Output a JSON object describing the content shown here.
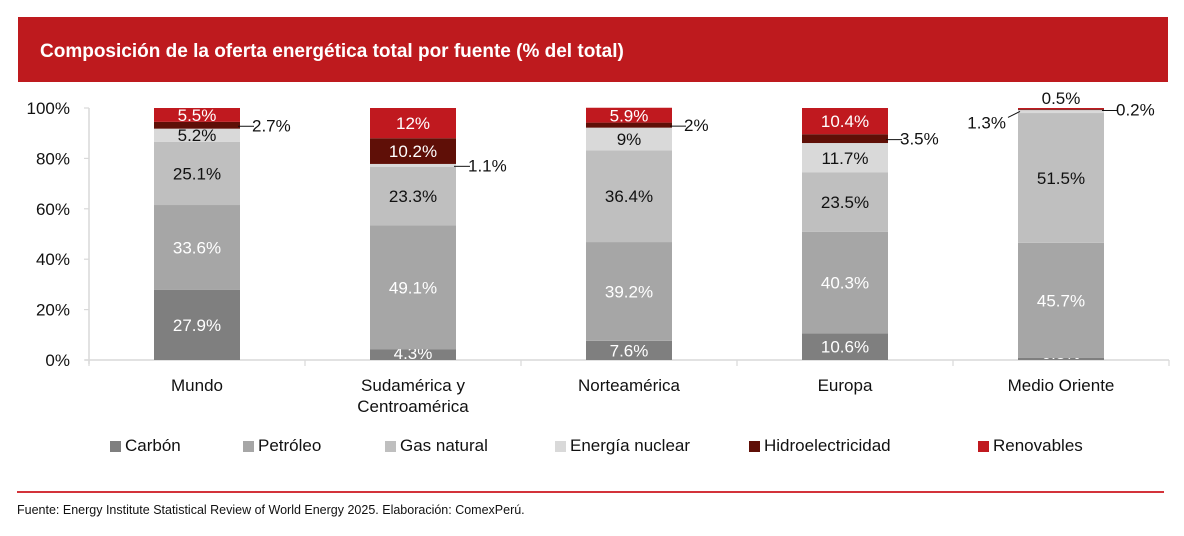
{
  "header": {
    "title": "Composición de la oferta energética total por fuente (% del total)",
    "banner_color": "#be1a1e"
  },
  "chart_data": {
    "type": "bar",
    "stacked": true,
    "title": "Composición de la oferta energética total por fuente (% del total)",
    "xlabel": "",
    "ylabel": "",
    "ylim": [
      0,
      100
    ],
    "yticks": [
      0,
      20,
      40,
      60,
      80,
      100
    ],
    "ytick_labels": [
      "0%",
      "20%",
      "40%",
      "60%",
      "80%",
      "100%"
    ],
    "grid": false,
    "legend_position": "bottom",
    "categories": [
      [
        "Mundo"
      ],
      [
        "Sudamérica y",
        "Centroamérica"
      ],
      [
        "Norteamérica"
      ],
      [
        "Europa"
      ],
      [
        "Medio Oriente"
      ]
    ],
    "series": [
      {
        "name": "Carbón",
        "color": "#7f7f7f",
        "label_color": "#ffffff",
        "values": [
          27.9,
          4.3,
          7.6,
          10.6,
          0.8
        ],
        "labels": [
          "27.9%",
          "4.3%",
          "7.6%",
          "10.6%",
          "0.8%"
        ]
      },
      {
        "name": "Petróleo",
        "color": "#a6a6a6",
        "label_color": "#ffffff",
        "values": [
          33.6,
          49.1,
          39.2,
          40.3,
          45.7
        ],
        "labels": [
          "33.6%",
          "49.1%",
          "39.2%",
          "40.3%",
          "45.7%"
        ]
      },
      {
        "name": "Gas natural",
        "color": "#bfbfbf",
        "label_color": "#111111",
        "values": [
          25.1,
          23.3,
          36.4,
          23.5,
          51.5
        ],
        "labels": [
          "25.1%",
          "23.3%",
          "36.4%",
          "23.5%",
          "51.5%"
        ]
      },
      {
        "name": "Energía nuclear",
        "color": "#d9d9d9",
        "label_color": "#111111",
        "values": [
          5.2,
          1.1,
          9.0,
          11.7,
          1.3
        ],
        "labels": [
          "5.2%",
          "1.1%",
          "9%",
          "11.7%",
          "1.3%"
        ]
      },
      {
        "name": "Hidroelectricidad",
        "color": "#5f0f07",
        "label_color": "#ffffff",
        "values": [
          2.7,
          10.2,
          2.0,
          3.5,
          0.2
        ],
        "labels": [
          "2.7%",
          "10.2%",
          "2%",
          "3.5%",
          "0.2%"
        ]
      },
      {
        "name": "Renovables",
        "color": "#c0191f",
        "label_color": "#ffffff",
        "values": [
          5.5,
          12.0,
          5.9,
          10.4,
          0.5
        ],
        "labels": [
          "5.5%",
          "12%",
          "5.9%",
          "10.4%",
          "0.5%"
        ]
      }
    ],
    "callout_labels": [
      {
        "category": 0,
        "series": 4,
        "side": "right"
      },
      {
        "category": 1,
        "series": 3,
        "side": "right"
      },
      {
        "category": 2,
        "series": 4,
        "side": "right"
      },
      {
        "category": 3,
        "series": 4,
        "side": "right"
      },
      {
        "category": 4,
        "series": 3,
        "side": "left"
      },
      {
        "category": 4,
        "series": 4,
        "side": "right"
      },
      {
        "category": 4,
        "series": 5,
        "side": "top"
      }
    ]
  },
  "legend": {
    "items": [
      "Carbón",
      "Petróleo",
      "Gas natural",
      "Energía nuclear",
      "Hidroelectricidad",
      "Renovables"
    ]
  },
  "footer": {
    "source": "Fuente: Energy Institute Statistical Review of World Energy 2025. Elaboración: ComexPerú.",
    "rule_color": "#d3333a"
  }
}
